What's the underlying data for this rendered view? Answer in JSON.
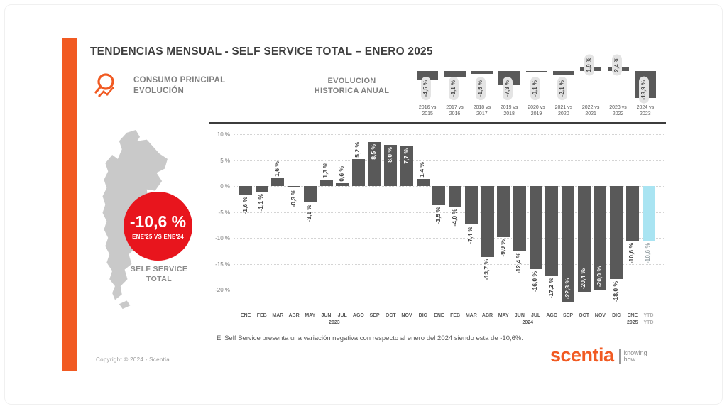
{
  "page": {
    "title": "TENDENCIAS MENSUAL - SELF SERVICE TOTAL –   ENERO 2025",
    "footnote": "El Self Service presenta una variación negativa con respecto al enero del 2024 siendo esta de -10,6%.",
    "copyright": "Copyright © 2024 - Scentia"
  },
  "header": {
    "section_title_line1": "CONSUMO PRINCIPAL",
    "section_title_line2": "EVOLUCIÓN",
    "annual_title_line1": "EVOLUCION",
    "annual_title_line2": "HISTORICA ANUAL"
  },
  "left_panel": {
    "badge_value": "-10,6 %",
    "badge_caption": "ENE'25 VS ENE'24",
    "map_label_line1": "SELF SERVICE",
    "map_label_line2": "TOTAL"
  },
  "logo": {
    "brand": "scentia",
    "tagline_line1": "knowing",
    "tagline_line2": "how"
  },
  "colors": {
    "accent_orange": "#F15A22",
    "bar_dark": "#595959",
    "bar_cyan": "#A9E4F2",
    "badge_red": "#E8151D",
    "map_gray": "#C9C9C9",
    "label_inside": "#FFFFFF",
    "label_outside": "#404040",
    "label_muted": "#9AA4A8"
  },
  "chart_data": [
    {
      "name": "evolucion-historica-anual",
      "type": "bar",
      "categories": [
        "2016 vs 2015",
        "2017 vs 2016",
        "2018 vs 2017",
        "2019 vs 2018",
        "2020 vs 2019",
        "2021 vs 2020",
        "2022 vs 2021",
        "2023 vs 2022",
        "2024 vs 2023"
      ],
      "values": [
        -4.5,
        -3.1,
        -1.5,
        -7.3,
        -0.1,
        -2.1,
        1.9,
        2.4,
        -13.9
      ],
      "labels": [
        "-4,5 %",
        "-3,1 %",
        "-1,5 %",
        "-7,3 %",
        "-0,1 %",
        "-2,1 %",
        "1,9 %",
        "2,4 %",
        "-13,9 %"
      ],
      "title": "EVOLUCION HISTORICA ANUAL",
      "legend": "none",
      "grid": false
    },
    {
      "name": "tendencia-mensual-self-service",
      "type": "bar",
      "categories": [
        "ENE",
        "FEB",
        "MAR",
        "ABR",
        "MAY",
        "JUN",
        "JUL",
        "AGO",
        "SEP",
        "OCT",
        "NOV",
        "DIC",
        "ENE",
        "FEB",
        "MAR",
        "ABR",
        "MAY",
        "JUN",
        "JUL",
        "AGO",
        "SEP",
        "OCT",
        "NOV",
        "DIC",
        "ENE",
        "YTD"
      ],
      "values": [
        -1.6,
        -1.1,
        1.6,
        -0.3,
        -3.1,
        1.3,
        0.6,
        5.2,
        8.5,
        8.0,
        7.7,
        1.4,
        -3.5,
        -4.0,
        -7.4,
        -13.7,
        -9.9,
        -12.4,
        -16.0,
        -17.2,
        -22.3,
        -20.4,
        -20.0,
        -18.0,
        -10.6,
        -10.6
      ],
      "labels": [
        "-1,6 %",
        "-1,1 %",
        "1,6 %",
        "-0,3 %",
        "-3,1 %",
        "1,3 %",
        "0,6 %",
        "5,2 %",
        "8,5 %",
        "8,0 %",
        "7,7 %",
        "1,4 %",
        "-3,5 %",
        "-4,0 %",
        "-7,4 %",
        "-13,7 %",
        "-9,9 %",
        "-12,4 %",
        "-16,0 %",
        "-17,2 %",
        "-22,3 %",
        "-20,4 %",
        "-20,0 %",
        "-18,0 %",
        "-10,6 %",
        "-10,6 %"
      ],
      "year_sublabels": [
        {
          "text": "2023",
          "col": 5.5,
          "muted": false
        },
        {
          "text": "2024",
          "col": 17.5,
          "muted": false
        },
        {
          "text": "2025",
          "col": 24,
          "muted": false
        },
        {
          "text": "YTD",
          "col": 25,
          "muted": true
        }
      ],
      "yticks": {
        "labels": [
          "10 %",
          "5 %",
          "0 %",
          "-5 %",
          "-10 %",
          "-15 %",
          "-20 %"
        ],
        "values": [
          10,
          5,
          0,
          -5,
          -10,
          -15,
          -20
        ]
      },
      "ylim": [
        -22.5,
        10
      ],
      "grid": "dotted-horizontal",
      "label_inside_pos_min": 7,
      "label_inside_neg_max": -19,
      "highlight_last_bar": true
    }
  ]
}
